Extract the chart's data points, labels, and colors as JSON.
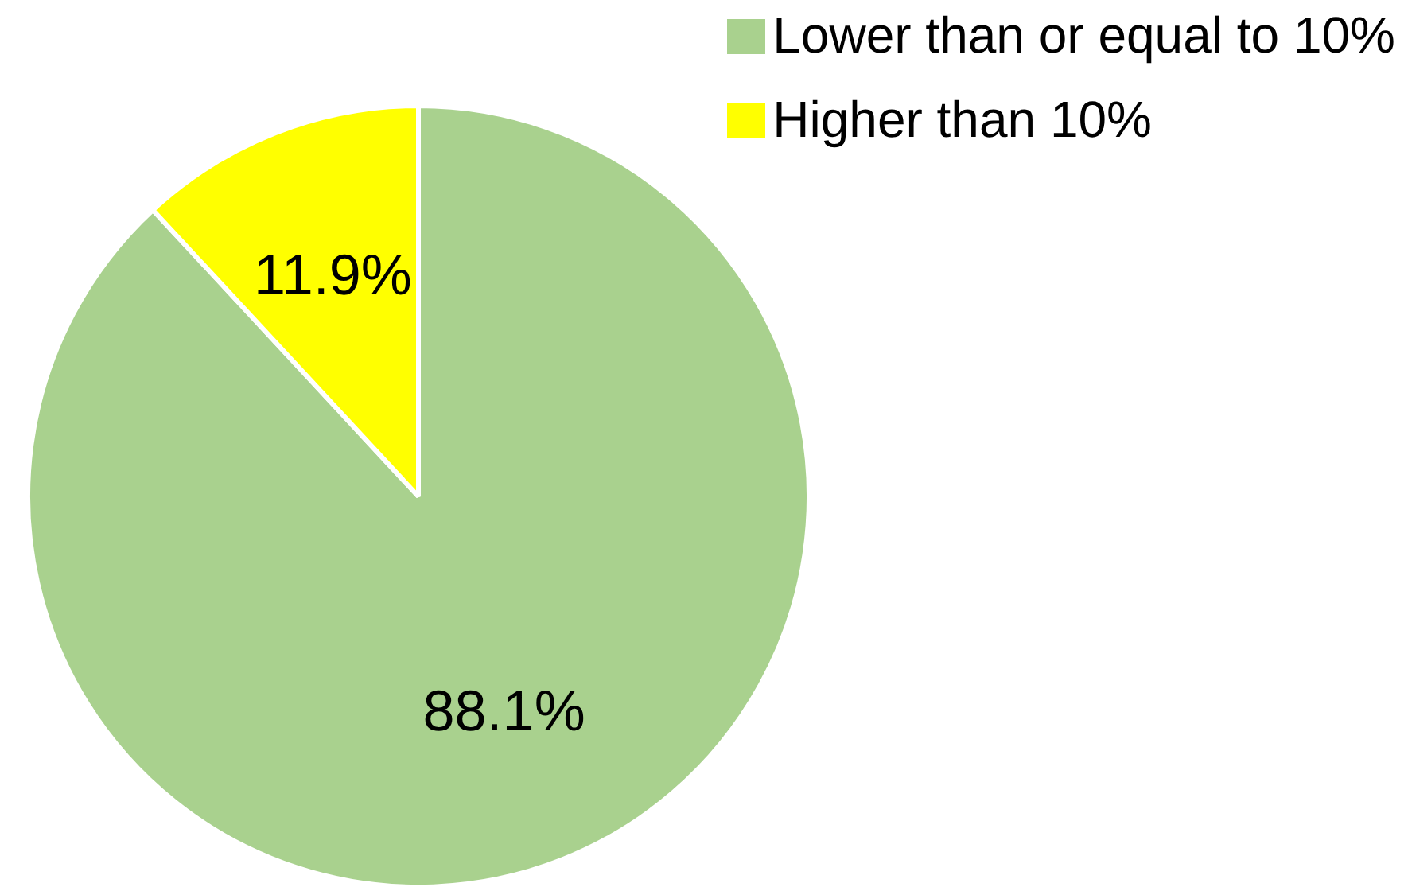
{
  "chart_data": {
    "type": "pie",
    "categories": [
      "Lower than or equal to 10%",
      "Higher than 10%"
    ],
    "values": [
      88.1,
      11.9
    ],
    "colors": [
      "#a9d18e",
      "#ffff00"
    ],
    "value_labels": [
      "88.1%",
      "11.9%"
    ],
    "legend": "top right"
  }
}
